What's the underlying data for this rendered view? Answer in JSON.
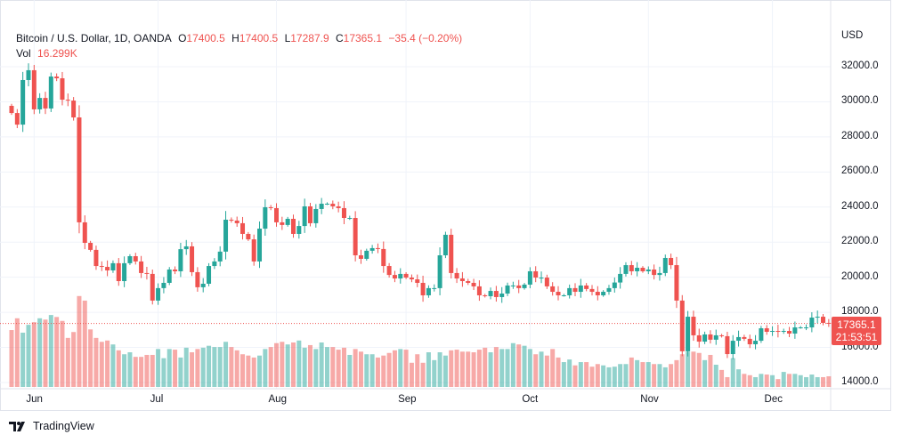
{
  "header": {
    "symbol": "Bitcoin / U.S. Dollar, 1D, OANDA",
    "o_label": "O",
    "o": "17400.5",
    "h_label": "H",
    "h": "17400.5",
    "l_label": "L",
    "l": "17287.9",
    "c_label": "C",
    "c": "17365.1",
    "change": "−35.4 (−0.20%)",
    "vol_label": "Vol",
    "vol": "16.299K"
  },
  "axis": {
    "currency": "USD",
    "last_price": "17365.1",
    "countdown": "21:53:51"
  },
  "branding": {
    "name": "TradingView"
  },
  "colors": {
    "up": "#26a69a",
    "down": "#ef5350",
    "grid": "#f0f3fa"
  },
  "chart_data": {
    "type": "candlestick",
    "title": "Bitcoin / U.S. Dollar, 1D, OANDA",
    "ylabel": "USD",
    "ylim": [
      14000,
      32000
    ],
    "yticks": [
      "32000.0",
      "30000.0",
      "28000.0",
      "26000.0",
      "24000.0",
      "22000.0",
      "20000.0",
      "18000.0",
      "16000.0",
      "14000.0"
    ],
    "xticks": [
      {
        "label": "Jun",
        "index": 4
      },
      {
        "label": "Jul",
        "index": 26
      },
      {
        "label": "Aug",
        "index": 47
      },
      {
        "label": "Sep",
        "index": 70
      },
      {
        "label": "Oct",
        "index": 92
      },
      {
        "label": "Nov",
        "index": 113
      },
      {
        "label": "Dec",
        "index": 135
      }
    ],
    "first_open": 29770,
    "closes": [
      29360,
      28700,
      31240,
      31800,
      29570,
      30220,
      29620,
      31440,
      31340,
      30120,
      30070,
      29110,
      23130,
      21960,
      21560,
      20640,
      20590,
      20390,
      20800,
      19780,
      20800,
      21200,
      20900,
      20240,
      20190,
      18670,
      19380,
      19680,
      20440,
      20340,
      21600,
      21760,
      20290,
      19430,
      19630,
      20640,
      20900,
      21460,
      23280,
      23230,
      23080,
      22470,
      22160,
      20900,
      22770,
      23990,
      23940,
      23130,
      22980,
      23330,
      22470,
      22920,
      24040,
      23080,
      23890,
      24190,
      24190,
      24040,
      23940,
      23380,
      23380,
      21250,
      21050,
      21510,
      21660,
      21610,
      20640,
      20130,
      19930,
      20190,
      19980,
      19880,
      19680,
      18970,
      19380,
      19380,
      21250,
      22420,
      20240,
      19930,
      19780,
      19680,
      19480,
      18970,
      18920,
      19220,
      18870,
      19070,
      19530,
      19530,
      19380,
      19580,
      20340,
      19980,
      19980,
      19480,
      19170,
      18970,
      18970,
      19380,
      19170,
      19530,
      19330,
      19170,
      18970,
      19170,
      19380,
      19700,
      20190,
      20690,
      20340,
      20540,
      20340,
      20440,
      20130,
      20240,
      21100,
      20690,
      18670,
      15780,
      17750,
      16690,
      16330,
      16740,
      16440,
      16690,
      16640,
      15620,
      16380,
      16590,
      16490,
      16180,
      16380,
      17090,
      16890,
      16940,
      16890,
      16940,
      16790,
      17140,
      17140,
      17140,
      17700,
      17750,
      17400,
      17365.1
    ],
    "volume_k": [
      87,
      105,
      83,
      95,
      99,
      105,
      103,
      110,
      107,
      101,
      75,
      84,
      139,
      132,
      88,
      75,
      69,
      71,
      65,
      56,
      50,
      53,
      46,
      46,
      49,
      49,
      58,
      44,
      58,
      57,
      45,
      60,
      53,
      58,
      60,
      63,
      61,
      61,
      69,
      61,
      56,
      50,
      48,
      45,
      48,
      58,
      61,
      67,
      69,
      65,
      68,
      71,
      60,
      64,
      58,
      68,
      61,
      61,
      57,
      60,
      49,
      58,
      54,
      50,
      50,
      45,
      48,
      52,
      56,
      58,
      57,
      37,
      50,
      37,
      53,
      41,
      53,
      48,
      56,
      57,
      54,
      54,
      53,
      57,
      60,
      53,
      61,
      58,
      58,
      67,
      65,
      63,
      58,
      50,
      54,
      48,
      58,
      45,
      38,
      42,
      33,
      38,
      38,
      31,
      35,
      33,
      30,
      31,
      35,
      35,
      45,
      41,
      38,
      38,
      35,
      35,
      30,
      35,
      41,
      50,
      54,
      54,
      52,
      41,
      49,
      34,
      26,
      15,
      44,
      27,
      20,
      18,
      15,
      20,
      19,
      18,
      12,
      23,
      20,
      20,
      18,
      15,
      19,
      15,
      15,
      16.3
    ]
  }
}
